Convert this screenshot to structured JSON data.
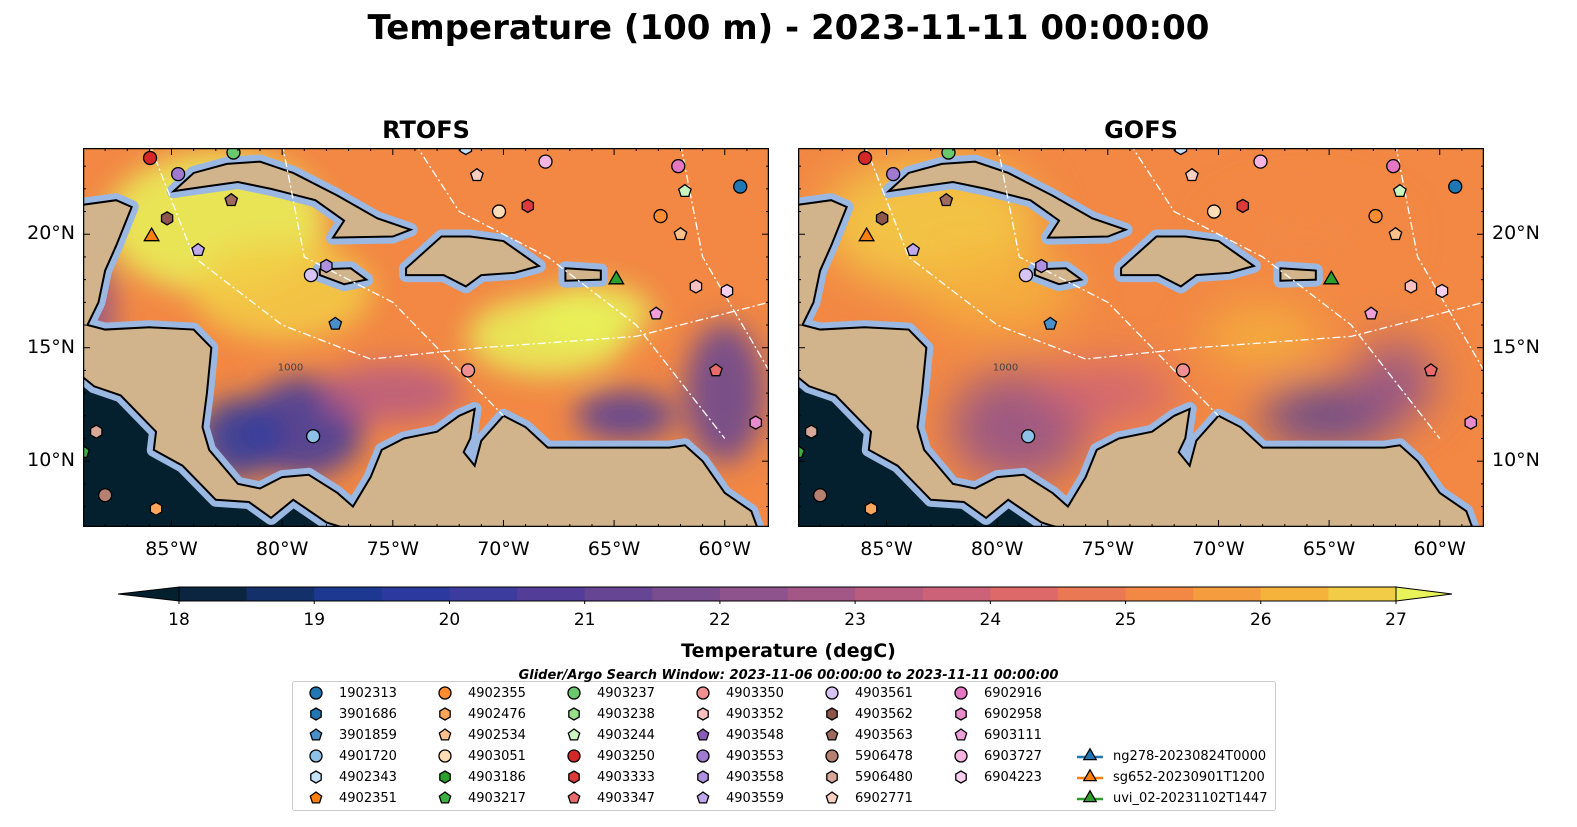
{
  "title": "Temperature (100 m) - 2023-11-11 00:00:00",
  "panels": [
    {
      "title": "RTOFS"
    },
    {
      "title": "GOFS"
    }
  ],
  "x_ticks": [
    "85°W",
    "80°W",
    "75°W",
    "70°W",
    "65°W",
    "60°W"
  ],
  "y_ticks": [
    "20°N",
    "15°N",
    "10°N"
  ],
  "chart_data": {
    "type": "heatmap",
    "title": "Temperature (100 m) - 2023-11-11 00:00:00",
    "extent": {
      "lon": [
        -89,
        -58
      ],
      "lat": [
        7.1,
        23.8
      ]
    },
    "x_tick_values": [
      -85,
      -80,
      -75,
      -70,
      -65,
      -60
    ],
    "y_tick_values": [
      20,
      15,
      10
    ],
    "colorbar": {
      "label": "Temperature (degC)",
      "range": [
        18,
        27
      ],
      "step": 0.5,
      "extend": "both",
      "tick_values": [
        18,
        19,
        20,
        21,
        22,
        23,
        24,
        25,
        26,
        27
      ],
      "tick_labels": [
        "18",
        "19",
        "20",
        "21",
        "22",
        "23",
        "24",
        "25",
        "26",
        "27"
      ],
      "colors": [
        "#04202f",
        "#0b2540",
        "#13306a",
        "#1c3890",
        "#2c3aa0",
        "#3c3b9e",
        "#523e98",
        "#654594",
        "#7a4c90",
        "#8e528c",
        "#a35787",
        "#b85c80",
        "#cc6278",
        "#dd6a68",
        "#ea7852",
        "#f28844",
        "#f59c3e",
        "#f5b33c",
        "#f2cc46",
        "#e8f35a"
      ]
    },
    "contour_label": "1000",
    "markers": [
      {
        "id": "4903250",
        "lon": -85.97,
        "lat": 23.36
      },
      {
        "id": "4903237",
        "lon": -82.2,
        "lat": 23.6
      },
      {
        "id": "4903553",
        "lon": -84.7,
        "lat": 22.65
      },
      {
        "id": "4903562",
        "lon": -85.2,
        "lat": 20.7
      },
      {
        "id": "4903563",
        "lon": -82.3,
        "lat": 21.5
      },
      {
        "id": "sg652-20230901T1200",
        "lon": -85.9,
        "lat": 19.9
      },
      {
        "id": "4903559",
        "lon": -83.8,
        "lat": 19.3
      },
      {
        "id": "4903558",
        "lon": -78.0,
        "lat": 18.6
      },
      {
        "id": "4903561",
        "lon": -78.7,
        "lat": 18.2
      },
      {
        "id": "3901859",
        "lon": -77.6,
        "lat": 16.05
      },
      {
        "id": "4902343",
        "lon": -71.7,
        "lat": 23.8
      },
      {
        "id": "6902771",
        "lon": -71.2,
        "lat": 22.6
      },
      {
        "id": "6903727",
        "lon": -68.1,
        "lat": 23.2
      },
      {
        "id": "4903051",
        "lon": -70.2,
        "lat": 21.0
      },
      {
        "id": "4903333",
        "lon": -68.9,
        "lat": 21.25
      },
      {
        "id": "6902916",
        "lon": -62.1,
        "lat": 23.0
      },
      {
        "id": "1902313",
        "lon": -59.3,
        "lat": 22.1
      },
      {
        "id": "4903244",
        "lon": -61.8,
        "lat": 21.9
      },
      {
        "id": "4902355",
        "lon": -62.9,
        "lat": 20.8
      },
      {
        "id": "4902534",
        "lon": -62.0,
        "lat": 20.0
      },
      {
        "id": "uvi_02-20231102T1447",
        "lon": -64.9,
        "lat": 18.0
      },
      {
        "id": "4903352",
        "lon": -61.3,
        "lat": 17.7
      },
      {
        "id": "6904223",
        "lon": -59.9,
        "lat": 17.5
      },
      {
        "id": "6903111",
        "lon": -63.1,
        "lat": 16.5
      },
      {
        "id": "4903350",
        "lon": -71.6,
        "lat": 14.0
      },
      {
        "id": "4903347",
        "lon": -60.4,
        "lat": 14.0
      },
      {
        "id": "6902958",
        "lon": -58.6,
        "lat": 11.7
      },
      {
        "id": "4901720",
        "lon": -78.6,
        "lat": 11.1
      },
      {
        "id": "5906480",
        "lon": -88.4,
        "lat": 11.3
      },
      {
        "id": "5906478",
        "lon": -88.0,
        "lat": 8.5
      },
      {
        "id": "4902476",
        "lon": -85.7,
        "lat": 7.9
      },
      {
        "id": "4903217",
        "lon": -89.0,
        "lat": 10.4
      }
    ]
  },
  "legend": {
    "title": "Glider/Argo Search Window: 2023-11-06 00:00:00 to 2023-11-11 00:00:00",
    "items": [
      {
        "label": "1902313",
        "shape": "circle",
        "color": "#1f77b4"
      },
      {
        "label": "3901686",
        "shape": "hexagon",
        "color": "#1f77b4"
      },
      {
        "label": "3901859",
        "shape": "pentagon",
        "color": "#4a90c8"
      },
      {
        "label": "4901720",
        "shape": "circle",
        "color": "#8ec0e8"
      },
      {
        "label": "4902343",
        "shape": "hexagon",
        "color": "#c6e2f7"
      },
      {
        "label": "4902351",
        "shape": "pentagon",
        "color": "#ff7f0e"
      },
      {
        "label": "4902355",
        "shape": "circle",
        "color": "#ff8c30"
      },
      {
        "label": "4902476",
        "shape": "hexagon",
        "color": "#ffa65a"
      },
      {
        "label": "4902534",
        "shape": "pentagon",
        "color": "#ffc08a"
      },
      {
        "label": "4903051",
        "shape": "circle",
        "color": "#ffdcb8"
      },
      {
        "label": "4903186",
        "shape": "hexagon",
        "color": "#2ca02c"
      },
      {
        "label": "4903217",
        "shape": "pentagon",
        "color": "#3cb043"
      },
      {
        "label": "4903237",
        "shape": "circle",
        "color": "#6cc86c"
      },
      {
        "label": "4903238",
        "shape": "hexagon",
        "color": "#98df8a"
      },
      {
        "label": "4903244",
        "shape": "pentagon",
        "color": "#c8f5c0"
      },
      {
        "label": "4903250",
        "shape": "circle",
        "color": "#d62728"
      },
      {
        "label": "4903333",
        "shape": "hexagon",
        "color": "#dc3a3b"
      },
      {
        "label": "4903347",
        "shape": "pentagon",
        "color": "#e86a6a"
      },
      {
        "label": "4903350",
        "shape": "circle",
        "color": "#f09090"
      },
      {
        "label": "4903352",
        "shape": "hexagon",
        "color": "#ffc0c0"
      },
      {
        "label": "4903548",
        "shape": "pentagon",
        "color": "#8a5cb8"
      },
      {
        "label": "4903553",
        "shape": "circle",
        "color": "#a07ad0"
      },
      {
        "label": "4903558",
        "shape": "hexagon",
        "color": "#b090e0"
      },
      {
        "label": "4903559",
        "shape": "pentagon",
        "color": "#c0a8ec"
      },
      {
        "label": "4903561",
        "shape": "circle",
        "color": "#d8c4f4"
      },
      {
        "label": "4903562",
        "shape": "hexagon",
        "color": "#8c564b"
      },
      {
        "label": "4903563",
        "shape": "pentagon",
        "color": "#9e6a5e"
      },
      {
        "label": "5906478",
        "shape": "circle",
        "color": "#b58070"
      },
      {
        "label": "5906480",
        "shape": "hexagon",
        "color": "#d8a898"
      },
      {
        "label": "6902771",
        "shape": "pentagon",
        "color": "#f8cfc0"
      },
      {
        "label": "6902916",
        "shape": "circle",
        "color": "#e377c2"
      },
      {
        "label": "6902958",
        "shape": "hexagon",
        "color": "#e88cce"
      },
      {
        "label": "6903111",
        "shape": "pentagon",
        "color": "#f0a0d8"
      },
      {
        "label": "6903727",
        "shape": "circle",
        "color": "#f4b6e0"
      },
      {
        "label": "6904223",
        "shape": "hexagon",
        "color": "#f8cfec"
      },
      {
        "label": "ng278-20230824T0000",
        "shape": "triangle",
        "color": "#1f77b4"
      },
      {
        "label": "sg652-20230901T1200",
        "shape": "triangle",
        "color": "#ff7f0e"
      },
      {
        "label": "uvi_02-20231102T1447",
        "shape": "triangle",
        "color": "#2ca02c"
      }
    ]
  }
}
